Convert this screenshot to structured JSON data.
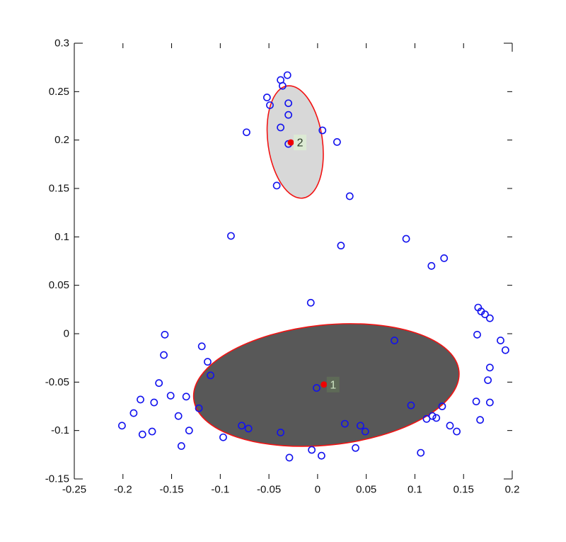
{
  "figure": {
    "background": "#ffffff",
    "description": "Scatter plot of 2-D points with two cluster covariance ellipses and numbered centroids"
  },
  "chart_data": {
    "type": "scatter",
    "title": "",
    "xlabel": "",
    "ylabel": "",
    "grid": false,
    "legend": null,
    "xlim": [
      -0.25,
      0.2
    ],
    "ylim": [
      -0.15,
      0.3
    ],
    "x_ticks": [
      -0.25,
      -0.2,
      -0.15,
      -0.1,
      -0.05,
      0,
      0.05,
      0.1,
      0.15,
      0.2
    ],
    "x_tick_labels": [
      "-0.25",
      "-0.2",
      "-0.15",
      "-0.1",
      "-0.05",
      "0",
      "0.05",
      "0.1",
      "0.15",
      "0.2"
    ],
    "y_ticks": [
      0.3,
      0.25,
      0.2,
      0.15,
      0.1,
      0.05,
      0,
      -0.05,
      -0.1,
      -0.15
    ],
    "y_tick_labels": [
      "0.3",
      "0.25",
      "0.2",
      "0.15",
      "0.1",
      "0.05",
      "0",
      "-0.05",
      "-0.1",
      "-0.15"
    ],
    "axis": {
      "color": "#000000",
      "tick_length": 7,
      "corner_length": 12,
      "font_size": 15,
      "label_color": "#111111"
    },
    "marker": {
      "shape": "open-circle",
      "stroke": "#1212ee",
      "radius": 4.6,
      "stroke_width": 1.6
    },
    "points": [
      [
        -0.031,
        0.267
      ],
      [
        -0.038,
        0.262
      ],
      [
        -0.036,
        0.256
      ],
      [
        -0.052,
        0.244
      ],
      [
        -0.03,
        0.238
      ],
      [
        -0.049,
        0.236
      ],
      [
        -0.03,
        0.226
      ],
      [
        -0.038,
        0.213
      ],
      [
        0.005,
        0.21
      ],
      [
        -0.073,
        0.208
      ],
      [
        0.02,
        0.198
      ],
      [
        -0.03,
        0.196
      ],
      [
        -0.042,
        0.153
      ],
      [
        0.033,
        0.142
      ],
      [
        -0.089,
        0.101
      ],
      [
        0.091,
        0.098
      ],
      [
        0.024,
        0.091
      ],
      [
        0.13,
        0.078
      ],
      [
        0.117,
        0.07
      ],
      [
        -0.007,
        0.032
      ],
      [
        0.165,
        0.027
      ],
      [
        0.168,
        0.023
      ],
      [
        0.172,
        0.02
      ],
      [
        0.177,
        0.016
      ],
      [
        0.164,
        -0.001
      ],
      [
        -0.157,
        -0.001
      ],
      [
        0.079,
        -0.007
      ],
      [
        0.188,
        -0.007
      ],
      [
        -0.119,
        -0.013
      ],
      [
        0.193,
        -0.017
      ],
      [
        -0.158,
        -0.022
      ],
      [
        -0.113,
        -0.029
      ],
      [
        0.177,
        -0.035
      ],
      [
        -0.11,
        -0.043
      ],
      [
        0.175,
        -0.048
      ],
      [
        -0.163,
        -0.051
      ],
      [
        -0.001,
        -0.056
      ],
      [
        -0.151,
        -0.064
      ],
      [
        -0.135,
        -0.065
      ],
      [
        -0.182,
        -0.068
      ],
      [
        0.163,
        -0.07
      ],
      [
        -0.168,
        -0.071
      ],
      [
        0.177,
        -0.071
      ],
      [
        0.096,
        -0.074
      ],
      [
        0.128,
        -0.075
      ],
      [
        -0.122,
        -0.077
      ],
      [
        -0.189,
        -0.082
      ],
      [
        -0.143,
        -0.085
      ],
      [
        0.118,
        -0.085
      ],
      [
        0.112,
        -0.088
      ],
      [
        0.122,
        -0.087
      ],
      [
        0.167,
        -0.089
      ],
      [
        0.028,
        -0.093
      ],
      [
        -0.078,
        -0.095
      ],
      [
        0.044,
        -0.095
      ],
      [
        -0.201,
        -0.095
      ],
      [
        0.136,
        -0.095
      ],
      [
        -0.071,
        -0.098
      ],
      [
        -0.132,
        -0.1
      ],
      [
        0.049,
        -0.101
      ],
      [
        -0.17,
        -0.101
      ],
      [
        0.143,
        -0.101
      ],
      [
        -0.038,
        -0.102
      ],
      [
        -0.18,
        -0.104
      ],
      [
        -0.097,
        -0.107
      ],
      [
        -0.14,
        -0.116
      ],
      [
        0.039,
        -0.118
      ],
      [
        -0.006,
        -0.12
      ],
      [
        0.106,
        -0.123
      ],
      [
        0.004,
        -0.126
      ],
      [
        -0.029,
        -0.128
      ]
    ],
    "ellipses": [
      {
        "name": "cluster-1-covariance",
        "cx": 0.009,
        "cy": -0.053,
        "rx": 0.137,
        "ry": 0.062,
        "rotation_deg": -6,
        "fill": "#585858",
        "stroke": "#f21313",
        "stroke_width": 1.6
      },
      {
        "name": "cluster-2-covariance",
        "cx": -0.023,
        "cy": 0.198,
        "rx": 0.028,
        "ry": 0.0585,
        "rotation_deg": -8,
        "fill": "#d8d8d8",
        "stroke": "#f21313",
        "stroke_width": 1.6
      }
    ],
    "centroids": [
      {
        "label": "1",
        "x": 0.0065,
        "y": -0.0525,
        "dot_color": "#ee0000",
        "dot_radius": 4.5,
        "box_fill": "#5e6a57",
        "text_color": "#cfe6c4"
      },
      {
        "label": "2",
        "x": -0.0275,
        "y": 0.1975,
        "dot_color": "#ee0000",
        "dot_radius": 4.5,
        "box_fill": "#dcead4",
        "text_color": "#2a3a26"
      }
    ]
  }
}
